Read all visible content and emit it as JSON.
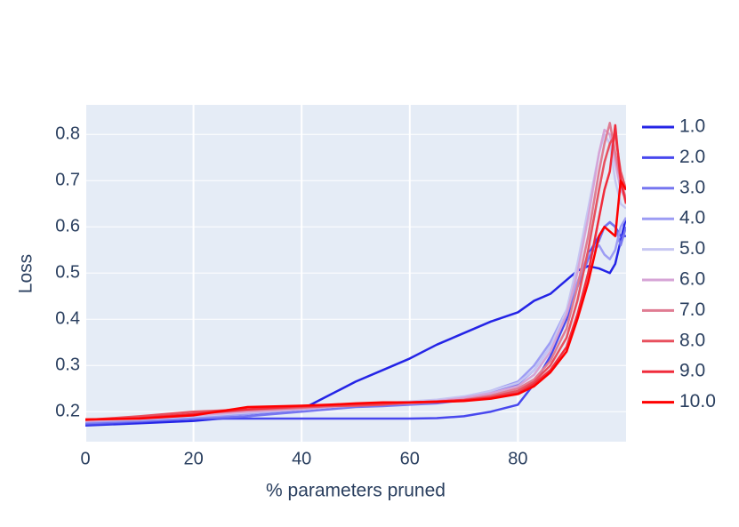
{
  "chart_data": {
    "type": "line",
    "xlabel": "% parameters pruned",
    "ylabel": "Loss",
    "x": [
      0,
      10,
      20,
      30,
      40,
      45,
      50,
      55,
      60,
      65,
      70,
      75,
      80,
      83,
      86,
      89,
      91,
      93,
      95,
      96,
      97,
      98,
      99,
      100
    ],
    "xlim": [
      0,
      100
    ],
    "xticks": [
      0,
      20,
      40,
      60,
      80
    ],
    "ylim": [
      0.135,
      0.864
    ],
    "yticks": [
      0.2,
      0.3,
      0.4,
      0.5,
      0.6,
      0.7,
      0.8
    ],
    "grid": true,
    "legend": "right",
    "series": [
      {
        "name": "1.0",
        "color": "#2424e6",
        "values": [
          0.17,
          0.175,
          0.18,
          0.19,
          0.205,
          0.235,
          0.265,
          0.29,
          0.315,
          0.345,
          0.37,
          0.395,
          0.415,
          0.44,
          0.455,
          0.485,
          0.505,
          0.515,
          0.51,
          0.505,
          0.5,
          0.52,
          0.57,
          0.62
        ]
      },
      {
        "name": "2.0",
        "color": "#4848ee",
        "values": [
          0.172,
          0.178,
          0.185,
          0.185,
          0.185,
          0.185,
          0.185,
          0.185,
          0.185,
          0.186,
          0.19,
          0.2,
          0.215,
          0.26,
          0.32,
          0.4,
          0.47,
          0.54,
          0.58,
          0.6,
          0.61,
          0.6,
          0.58,
          0.58
        ]
      },
      {
        "name": "3.0",
        "color": "#7676f0",
        "values": [
          0.175,
          0.18,
          0.185,
          0.19,
          0.2,
          0.205,
          0.21,
          0.212,
          0.215,
          0.218,
          0.225,
          0.24,
          0.26,
          0.29,
          0.34,
          0.41,
          0.47,
          0.53,
          0.57,
          0.6,
          0.61,
          0.6,
          0.56,
          0.6
        ]
      },
      {
        "name": "4.0",
        "color": "#9c9cf4",
        "values": [
          0.178,
          0.182,
          0.188,
          0.195,
          0.205,
          0.21,
          0.215,
          0.218,
          0.22,
          0.225,
          0.232,
          0.245,
          0.265,
          0.3,
          0.35,
          0.42,
          0.48,
          0.54,
          0.56,
          0.54,
          0.53,
          0.55,
          0.6,
          0.62
        ]
      },
      {
        "name": "5.0",
        "color": "#c6c6f2",
        "values": [
          0.18,
          0.184,
          0.19,
          0.198,
          0.205,
          0.21,
          0.214,
          0.218,
          0.222,
          0.226,
          0.233,
          0.245,
          0.262,
          0.29,
          0.34,
          0.42,
          0.52,
          0.64,
          0.76,
          0.8,
          0.78,
          0.7,
          0.65,
          0.64
        ]
      },
      {
        "name": "6.0",
        "color": "#d6a4d6",
        "values": [
          0.18,
          0.185,
          0.192,
          0.2,
          0.206,
          0.21,
          0.213,
          0.216,
          0.219,
          0.223,
          0.23,
          0.24,
          0.255,
          0.28,
          0.33,
          0.41,
          0.5,
          0.62,
          0.76,
          0.81,
          0.8,
          0.74,
          0.68,
          0.66
        ]
      },
      {
        "name": "7.0",
        "color": "#e07c92",
        "values": [
          0.182,
          0.186,
          0.195,
          0.203,
          0.208,
          0.212,
          0.214,
          0.216,
          0.218,
          0.221,
          0.226,
          0.235,
          0.25,
          0.27,
          0.31,
          0.38,
          0.47,
          0.58,
          0.72,
          0.78,
          0.825,
          0.76,
          0.7,
          0.66
        ]
      },
      {
        "name": "8.0",
        "color": "#e8505e",
        "values": [
          0.182,
          0.19,
          0.2,
          0.205,
          0.21,
          0.212,
          0.213,
          0.215,
          0.22,
          0.222,
          0.225,
          0.232,
          0.245,
          0.265,
          0.3,
          0.36,
          0.44,
          0.55,
          0.68,
          0.74,
          0.78,
          0.8,
          0.72,
          0.68
        ]
      },
      {
        "name": "9.0",
        "color": "#f02c3c",
        "values": [
          0.183,
          0.186,
          0.195,
          0.205,
          0.212,
          0.214,
          0.216,
          0.218,
          0.22,
          0.222,
          0.225,
          0.23,
          0.24,
          0.26,
          0.29,
          0.34,
          0.41,
          0.5,
          0.62,
          0.68,
          0.72,
          0.82,
          0.7,
          0.65
        ]
      },
      {
        "name": "10.0",
        "color": "#ff0000",
        "values": [
          0.183,
          0.185,
          0.192,
          0.21,
          0.213,
          0.215,
          0.218,
          0.22,
          0.22,
          0.221,
          0.223,
          0.228,
          0.238,
          0.255,
          0.285,
          0.33,
          0.4,
          0.48,
          0.58,
          0.6,
          0.59,
          0.58,
          0.7,
          0.68
        ]
      }
    ]
  }
}
